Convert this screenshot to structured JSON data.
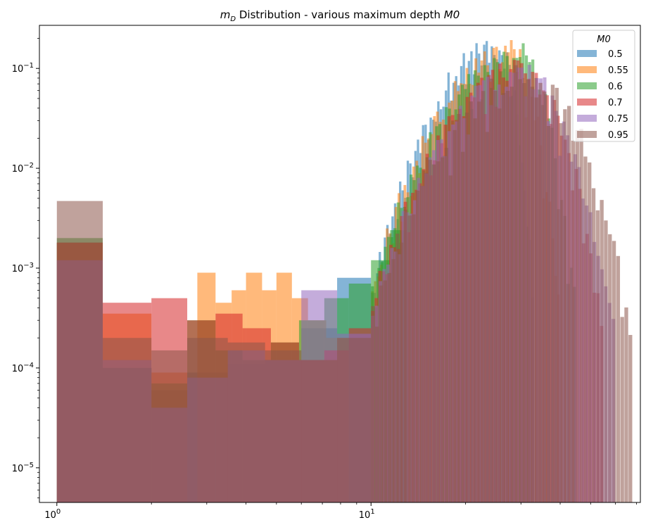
{
  "chart_data": {
    "type": "histogram",
    "title_main": "m",
    "title_sub": "D",
    "title_rest": " Distribution - various maximum depth ",
    "title_var": "M0",
    "xscale": "log",
    "yscale": "log",
    "xlim": [
      0.88,
      72
    ],
    "ylim": [
      4.5e-06,
      0.27
    ],
    "x_ticks": [
      {
        "value": 1,
        "base": "10",
        "exp": "0"
      },
      {
        "value": 10,
        "base": "10",
        "exp": "1"
      }
    ],
    "y_ticks": [
      {
        "value": 0.1,
        "base": "10",
        "exp": "−1"
      },
      {
        "value": 0.01,
        "base": "10",
        "exp": "−2"
      },
      {
        "value": 0.001,
        "base": "10",
        "exp": "−3"
      },
      {
        "value": 0.0001,
        "base": "10",
        "exp": "−4"
      },
      {
        "value": 1e-05,
        "base": "10",
        "exp": "−5"
      }
    ],
    "legend_title": "M0",
    "legend_position": "top-right",
    "bar_alpha": 0.55,
    "series": [
      {
        "name": "0.5",
        "color": "#1f77b4",
        "peak_x": 26,
        "peak_y": 0.17,
        "max_x": 33,
        "low_bins": [
          {
            "x0": 1,
            "x1": 1.4,
            "y": 0.0018
          },
          {
            "x0": 1.4,
            "x1": 2,
            "y": 0.0001
          },
          {
            "x0": 2,
            "x1": 2.6,
            "y": 6e-05
          },
          {
            "x0": 2.6,
            "x1": 3.5,
            "y": 9e-05
          },
          {
            "x0": 3.5,
            "x1": 4.6,
            "y": 0.00011
          },
          {
            "x0": 4.6,
            "x1": 6,
            "y": 0.00012
          },
          {
            "x0": 6,
            "x1": 7.8,
            "y": 0.00025
          },
          {
            "x0": 7.8,
            "x1": 10,
            "y": 0.0008
          }
        ]
      },
      {
        "name": "0.55",
        "color": "#ff7f0e",
        "peak_x": 28,
        "peak_y": 0.15,
        "max_x": 40,
        "low_bins": [
          {
            "x0": 1,
            "x1": 1.4,
            "y": 0.0018
          },
          {
            "x0": 1.4,
            "x1": 2,
            "y": 0.00035
          },
          {
            "x0": 2,
            "x1": 2.6,
            "y": 9e-05
          },
          {
            "x0": 2.8,
            "x1": 3.2,
            "y": 0.0009
          },
          {
            "x0": 3.2,
            "x1": 3.6,
            "y": 0.00045
          },
          {
            "x0": 3.6,
            "x1": 4,
            "y": 0.0006
          },
          {
            "x0": 4,
            "x1": 4.5,
            "y": 0.0009
          },
          {
            "x0": 4.5,
            "x1": 5,
            "y": 0.0006
          },
          {
            "x0": 5,
            "x1": 5.6,
            "y": 0.0009
          },
          {
            "x0": 5.6,
            "x1": 6.3,
            "y": 0.0005
          },
          {
            "x0": 6.3,
            "x1": 7.2,
            "y": 0.0003
          },
          {
            "x0": 7.2,
            "x1": 8.5,
            "y": 0.0002
          }
        ]
      },
      {
        "name": "0.6",
        "color": "#2ca02c",
        "peak_x": 30,
        "peak_y": 0.14,
        "max_x": 45,
        "low_bins": [
          {
            "x0": 1,
            "x1": 1.4,
            "y": 0.002
          },
          {
            "x0": 1.4,
            "x1": 2,
            "y": 0.0001
          },
          {
            "x0": 2,
            "x1": 2.6,
            "y": 7e-05
          },
          {
            "x0": 2.6,
            "x1": 3.2,
            "y": 0.0003
          },
          {
            "x0": 3.2,
            "x1": 3.9,
            "y": 0.00015
          },
          {
            "x0": 3.9,
            "x1": 4.8,
            "y": 0.00012
          },
          {
            "x0": 4.8,
            "x1": 5.9,
            "y": 0.00018
          },
          {
            "x0": 5.9,
            "x1": 7.1,
            "y": 0.0003
          },
          {
            "x0": 7.1,
            "x1": 8.5,
            "y": 0.0005
          },
          {
            "x0": 8.5,
            "x1": 10,
            "y": 0.0007
          },
          {
            "x0": 10,
            "x1": 11.5,
            "y": 0.0012
          },
          {
            "x0": 11.5,
            "x1": 13,
            "y": 0.0024
          }
        ]
      },
      {
        "name": "0.7",
        "color": "#d62728",
        "peak_x": 31,
        "peak_y": 0.1,
        "max_x": 55,
        "low_bins": [
          {
            "x0": 1,
            "x1": 1.4,
            "y": 0.0018
          },
          {
            "x0": 1.4,
            "x1": 2,
            "y": 0.00045
          },
          {
            "x0": 2,
            "x1": 2.6,
            "y": 0.0005
          },
          {
            "x0": 2.6,
            "x1": 3.2,
            "y": 0.0003
          },
          {
            "x0": 3.2,
            "x1": 3.9,
            "y": 0.00035
          },
          {
            "x0": 3.9,
            "x1": 4.8,
            "y": 0.00025
          },
          {
            "x0": 4.8,
            "x1": 5.9,
            "y": 0.00018
          },
          {
            "x0": 5.9,
            "x1": 7.1,
            "y": 0.00012
          },
          {
            "x0": 7.1,
            "x1": 8.5,
            "y": 0.00015
          },
          {
            "x0": 8.5,
            "x1": 10,
            "y": 0.00025
          }
        ]
      },
      {
        "name": "0.75",
        "color": "#9467bd",
        "peak_x": 30,
        "peak_y": 0.09,
        "max_x": 60,
        "low_bins": [
          {
            "x0": 1,
            "x1": 1.4,
            "y": 0.0012
          },
          {
            "x0": 1.4,
            "x1": 2,
            "y": 0.00012
          },
          {
            "x0": 2,
            "x1": 2.6,
            "y": 4e-05
          },
          {
            "x0": 2.6,
            "x1": 3.5,
            "y": 8e-05
          },
          {
            "x0": 3.5,
            "x1": 4.6,
            "y": 0.00015
          },
          {
            "x0": 4.6,
            "x1": 6,
            "y": 0.00012
          },
          {
            "x0": 6,
            "x1": 7.8,
            "y": 0.0006
          },
          {
            "x0": 7.8,
            "x1": 10,
            "y": 0.00022
          }
        ]
      },
      {
        "name": "0.95",
        "color": "#8c564b",
        "peak_x": 32,
        "peak_y": 0.085,
        "max_x": 68,
        "low_bins": [
          {
            "x0": 1,
            "x1": 1.4,
            "y": 0.0047
          },
          {
            "x0": 1.4,
            "x1": 2,
            "y": 0.0002
          },
          {
            "x0": 2,
            "x1": 2.6,
            "y": 0.00015
          },
          {
            "x0": 2.6,
            "x1": 3.5,
            "y": 0.0002
          },
          {
            "x0": 3.5,
            "x1": 4.6,
            "y": 0.00018
          },
          {
            "x0": 4.6,
            "x1": 6,
            "y": 0.00015
          },
          {
            "x0": 6,
            "x1": 7.8,
            "y": 0.00012
          },
          {
            "x0": 7.8,
            "x1": 10,
            "y": 0.0002
          }
        ]
      }
    ]
  }
}
